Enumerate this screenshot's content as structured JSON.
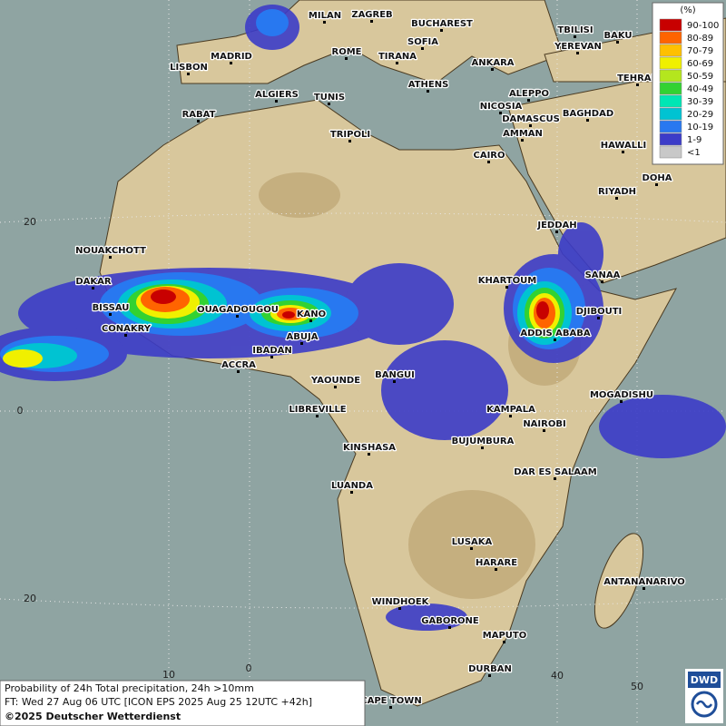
{
  "map": {
    "cities": [
      "MILAN",
      "ZAGREB",
      "BUCHAREST",
      "TBILISI",
      "BAKU",
      "MADRID",
      "ROME",
      "SOFIA",
      "TIRANA",
      "ANKARA",
      "YEREVAN",
      "LISBON",
      "TEHRAN",
      "ALGIERS",
      "TUNIS",
      "ATHENS",
      "ALEPPO",
      "RABAT",
      "NICOSIA",
      "BAGHDAD",
      "DAMASCUS",
      "AMMAN",
      "TRIPOLI",
      "HAWALLI",
      "CAIRO",
      "DOHA",
      "RIYADH",
      "JEDDAH",
      "NOUAKCHOTT",
      "SANAA",
      "KHARTOUM",
      "DAKAR",
      "BISSAU",
      "OUAGADOUGOU",
      "KANO",
      "DJIBOUTI",
      "CONAKRY",
      "ABUJA",
      "ADDIS ABABA",
      "IBADAN",
      "ACCRA",
      "YAOUNDE",
      "BANGUI",
      "MOGADISHU",
      "LIBREVILLE",
      "KAMPALA",
      "NAIROBI",
      "KINSHASA",
      "BUJUMBURA",
      "DAR ES SALAAM",
      "LUANDA",
      "LUSAKA",
      "HARARE",
      "ANTANANARIVO",
      "WINDHOEK",
      "GABORONE",
      "MAPUTO",
      "DURBAN",
      "CAPE TOWN"
    ],
    "latitude_labels": [
      "20",
      "0",
      "20"
    ],
    "longitude_labels": [
      "10",
      "0",
      "40",
      "50"
    ]
  },
  "legend": {
    "title": "(%)",
    "items": [
      {
        "label": "90-100",
        "color": "#c80000"
      },
      {
        "label": "80-89",
        "color": "#ff6400"
      },
      {
        "label": "70-79",
        "color": "#ffc000"
      },
      {
        "label": "60-69",
        "color": "#f0f000"
      },
      {
        "label": "50-59",
        "color": "#b4e61e"
      },
      {
        "label": "40-49",
        "color": "#32d232"
      },
      {
        "label": "30-39",
        "color": "#00e6b4"
      },
      {
        "label": "20-29",
        "color": "#00c3d2"
      },
      {
        "label": "10-19",
        "color": "#2878f0"
      },
      {
        "label": "1-9",
        "color": "#3c3cc8"
      },
      {
        "label": "<1",
        "color": "#c8c8c8"
      }
    ]
  },
  "caption": {
    "line1": "Probability of 24h Total precipitation, 24h >10mm",
    "line2": "FT: Wed 27 Aug 06 UTC [ICON EPS 2025 Aug 25 12UTC +42h]",
    "copyright": "©2025 Deutscher Wetterdienst"
  },
  "logo": "DWD"
}
